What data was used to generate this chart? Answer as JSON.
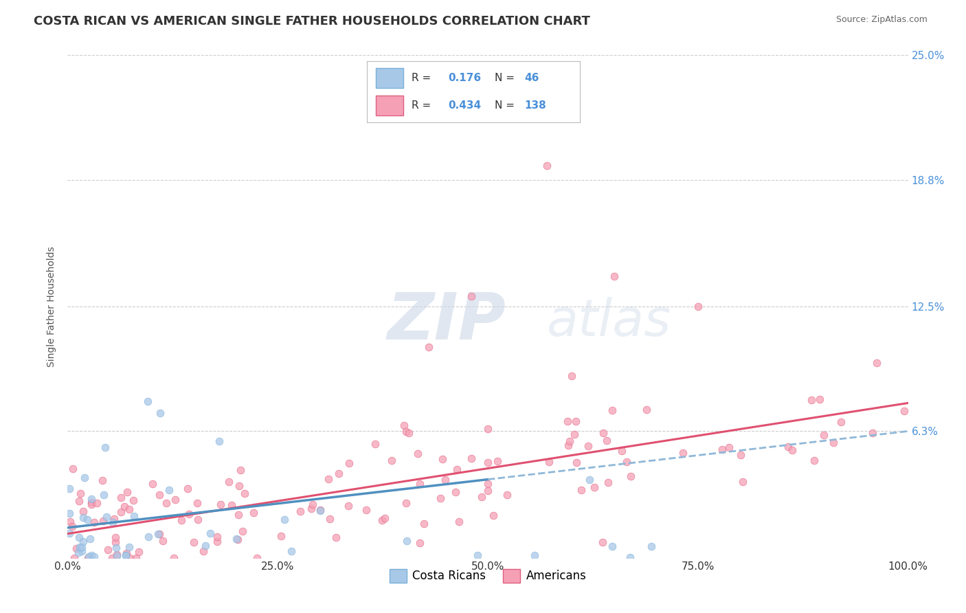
{
  "title": "COSTA RICAN VS AMERICAN SINGLE FATHER HOUSEHOLDS CORRELATION CHART",
  "source_text": "Source: ZipAtlas.com",
  "ylabel": "Single Father Households",
  "legend_labels": [
    "Costa Ricans",
    "Americans"
  ],
  "R_costa": 0.176,
  "N_costa": 46,
  "R_american": 0.434,
  "N_american": 138,
  "color_costa": "#a8c8e8",
  "color_american": "#f5a0b5",
  "edge_color_costa": "#7ab0d8",
  "edge_color_american": "#e06080",
  "line_color_costa_solid": "#5090c0",
  "line_color_costa_dashed": "#90b8d8",
  "line_color_american": "#e05070",
  "xlim": [
    0,
    100
  ],
  "ylim": [
    0,
    25
  ],
  "yticks": [
    0,
    6.3,
    12.5,
    18.8,
    25.0
  ],
  "ytick_labels": [
    "",
    "6.3%",
    "12.5%",
    "18.8%",
    "25.0%"
  ],
  "xtick_labels": [
    "0.0%",
    "25.0%",
    "50.0%",
    "75.0%",
    "100.0%"
  ],
  "xticks": [
    0,
    25,
    50,
    75,
    100
  ],
  "background_color": "#ffffff",
  "watermark_zip": "ZIP",
  "watermark_atlas": "atlas",
  "title_fontsize": 13,
  "axis_label_fontsize": 10,
  "tick_fontsize": 11,
  "legend_fontsize": 12,
  "source_fontsize": 9,
  "watermark_color": "#ccd8e8",
  "right_tick_color": "#4a90d9",
  "grid_color": "#cccccc",
  "title_color": "#333333",
  "source_color": "#666666",
  "ylabel_color": "#555555"
}
